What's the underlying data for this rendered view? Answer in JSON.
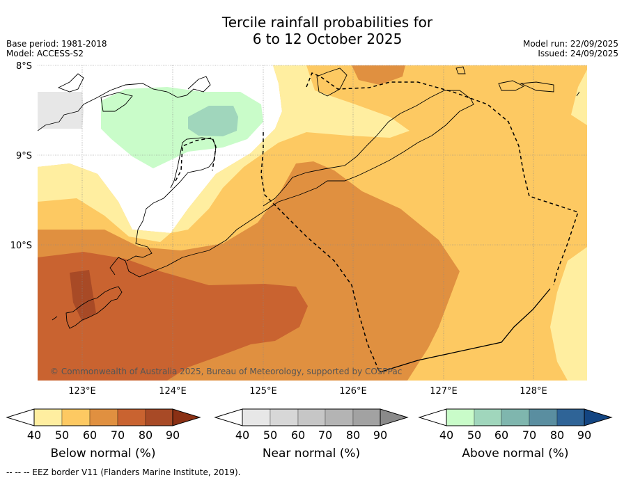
{
  "title": {
    "line1": "Tercile rainfall probabilities for",
    "line2": "6 to 12 October 2025"
  },
  "meta_left": {
    "base_period": "Base period: 1981-2018",
    "model": "Model: ACCESS-S2"
  },
  "meta_right": {
    "model_run": "Model run: 22/09/2025",
    "issued": "Issued: 24/09/2025"
  },
  "map": {
    "lat_labels": [
      "8°S",
      "9°S",
      "10°S"
    ],
    "lon_labels": [
      "123°E",
      "124°E",
      "125°E",
      "126°E",
      "127°E",
      "128°E"
    ],
    "copyright": "© Commonwealth of Australia 2025, Bureau of Meteorology, supported by COSPPac"
  },
  "colorbars": {
    "below": {
      "label": "Below normal (%)",
      "ticks": [
        "40",
        "50",
        "60",
        "70",
        "80",
        "90"
      ],
      "colors": [
        "#ffeea0",
        "#fdc962",
        "#e09040",
        "#c96330",
        "#a84a26",
        "#8a3014"
      ]
    },
    "near": {
      "label": "Near normal (%)",
      "ticks": [
        "40",
        "50",
        "60",
        "70",
        "80",
        "90"
      ],
      "colors": [
        "#e7e7e7",
        "#d7d7d7",
        "#c6c6c6",
        "#b4b4b4",
        "#a2a2a2",
        "#8a8a8a"
      ]
    },
    "above": {
      "label": "Above normal (%)",
      "ticks": [
        "40",
        "50",
        "60",
        "70",
        "80",
        "90"
      ],
      "colors": [
        "#c9fcc9",
        "#a0d6bc",
        "#7fb6ae",
        "#5a8ea0",
        "#2f6497",
        "#134582"
      ]
    }
  },
  "footer": "--  --  -- EEZ border V11 (Flanders Marine Institute, 2019)."
}
